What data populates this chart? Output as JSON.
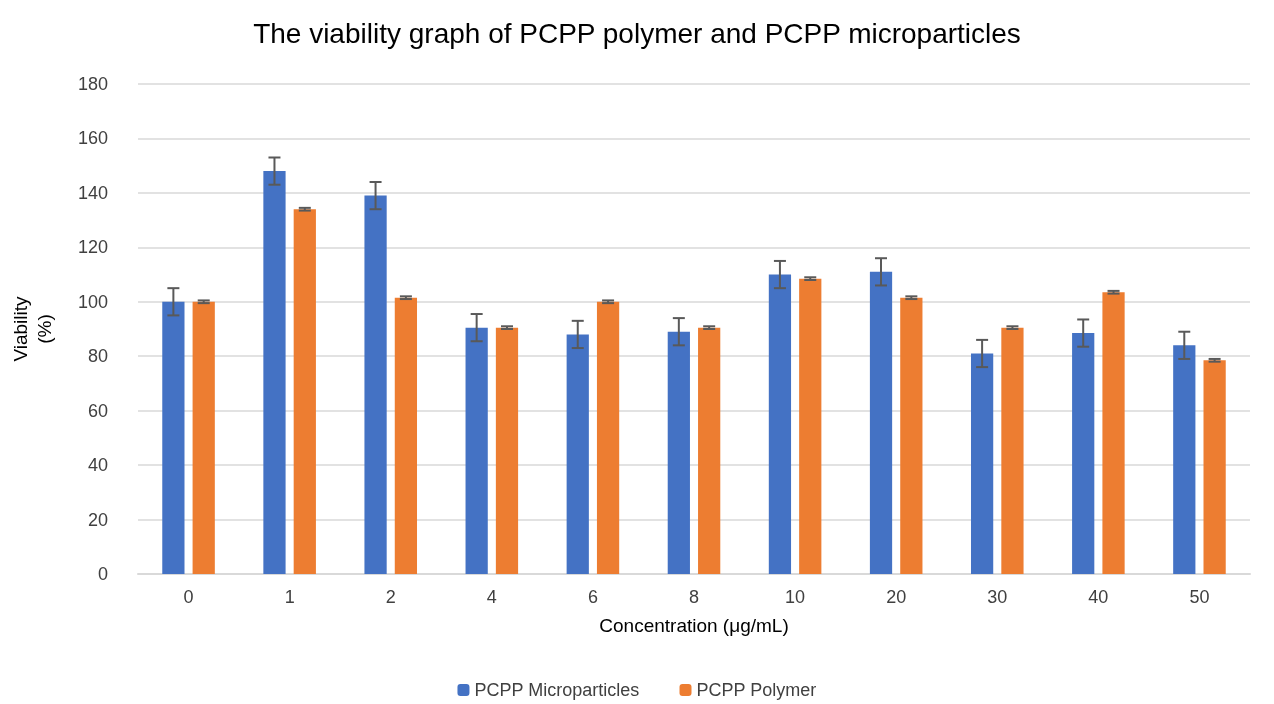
{
  "chart_data": {
    "type": "bar",
    "title": "The viability graph of PCPP polymer and PCPP microparticles",
    "xlabel": "Concentration (μg/mL)",
    "ylabel": "Viability\n(%)",
    "categories": [
      "0",
      "1",
      "2",
      "4",
      "6",
      "8",
      "10",
      "20",
      "30",
      "40",
      "50"
    ],
    "series": [
      {
        "name": "PCPP Microparticles",
        "color": "#4472c4",
        "values": [
          100,
          148,
          139,
          90.5,
          88,
          89,
          110,
          111,
          81,
          88.5,
          84
        ],
        "errors": [
          5,
          5,
          5,
          5,
          5,
          5,
          5,
          5,
          5,
          5,
          5
        ]
      },
      {
        "name": "PCPP Polymer",
        "color": "#ed7d31",
        "values": [
          100,
          134,
          101.5,
          90.5,
          100,
          90.5,
          108.5,
          101.5,
          90.5,
          103.5,
          78.5
        ],
        "errors": [
          0.5,
          0.5,
          0.5,
          0.5,
          0.5,
          0.5,
          0.5,
          0.5,
          0.5,
          0.5,
          0.5
        ]
      }
    ],
    "ylim": [
      0,
      180
    ],
    "yticks": [
      0,
      20,
      40,
      60,
      80,
      100,
      120,
      140,
      160,
      180
    ],
    "grid": "y",
    "legend": "bottom"
  }
}
